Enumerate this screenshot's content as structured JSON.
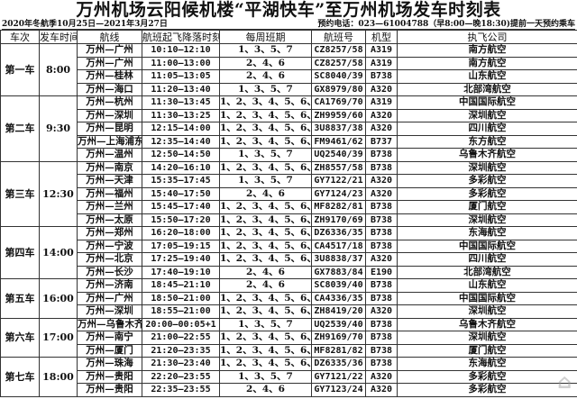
{
  "title": "万州机场云阳候机楼“平湖快车”至万州机场发车时刻表",
  "season": "2020年冬航季10月25日—2021年3月27日",
  "booking": "预约电话：023—61004788（早8:00—晚18:30)提前一天预约乘车",
  "headers": [
    "车次",
    "发车时间",
    "航线",
    "航班起飞降落时刻",
    "每周班期",
    "航班号",
    "机型",
    "执飞公司"
  ],
  "groups": [
    {
      "car": "第一车",
      "time": "8:00",
      "rows": [
        [
          "万州—广州",
          "10:10—12:10",
          "1、3、5、7",
          "CZ8257/58",
          "A319",
          "南方航空"
        ],
        [
          "万州—广州",
          "11:00—13:00",
          "2、4、6",
          "CZ8257/58",
          "A319",
          "南方航空"
        ],
        [
          "万州—桂林",
          "11:05—13:05",
          "2、4、6",
          "SC8040/39",
          "B738",
          "山东航空"
        ],
        [
          "万州—海口",
          "11:20—13:40",
          "1、3、5、7",
          "GX8979/80",
          "A320",
          "北部湾航空"
        ]
      ]
    },
    {
      "car": "第二车",
      "time": "9:30",
      "rows": [
        [
          "万州—杭州",
          "11:30—13:45",
          "1、2、3、4、5、6、7",
          "CA1769/70",
          "A319",
          "中国国际航空"
        ],
        [
          "万州—深圳",
          "11:30—13:25",
          "1、2、3、4、5、6、7",
          "ZH9959/60",
          "A320",
          "深圳航空"
        ],
        [
          "万州—昆明",
          "12:15—14:00",
          "1、2、3、4、5、6、7",
          "3U8837/38",
          "A320",
          "四川航空"
        ],
        [
          "万州—上海浦东",
          "12:35—14:40",
          "1、2、3、4、5、6、7",
          "FM9461/62",
          "B737",
          "东方航空"
        ],
        [
          "万州—温州",
          "12:50—14:50",
          "1、3、5、7",
          "UQ2540/39",
          "B738",
          "乌鲁木齐航空"
        ]
      ]
    },
    {
      "car": "第三车",
      "time": "12:30",
      "rows": [
        [
          "万州—南京",
          "14:20—16:10",
          "1、2、3、4、5、6、7",
          "ZH8557/58",
          "B738",
          "深圳航空"
        ],
        [
          "万州—天津",
          "15:35—17:45",
          "1、3、5、7",
          "GY7122/21",
          "A320",
          "多彩航空"
        ],
        [
          "万州—福州",
          "15:40—17:50",
          "2、4、6",
          "GY7124/23",
          "A320",
          "多彩航空"
        ],
        [
          "万州—兰州",
          "15:45—17:40",
          "1、2、3、4、5、6、7",
          "MF8282/81",
          "B738",
          "厦门航空"
        ],
        [
          "万州—太原",
          "15:50—17:20",
          "1、2、3、4、5、6、7",
          "ZH9170/69",
          "B738",
          "深圳航空"
        ]
      ]
    },
    {
      "car": "第四车",
      "time": "14:00",
      "rows": [
        [
          "万州—郑州",
          "16:20—18:00",
          "1、2、3、4、5、6、7",
          "DZ6336/35",
          "B738",
          "东海航空"
        ],
        [
          "万州—宁波",
          "17:05—19:15",
          "1、2、3、4、5、6、7",
          "CA4517/18",
          "B738",
          "中国国际航空"
        ],
        [
          "万州—北京",
          "17:25—19:40",
          "1、2、3、4、5、6、7",
          "3U8838/37",
          "A320",
          "四川航空"
        ],
        [
          "万州—长沙",
          "17:40—19:10",
          "2、4、6",
          "GX7883/84",
          "E190",
          "北部湾航空"
        ]
      ]
    },
    {
      "car": "第五车",
      "time": "16:00",
      "rows": [
        [
          "万州—济南",
          "18:45—21:10",
          "2、4、6",
          "SC8039/40",
          "B738",
          "山东航空"
        ],
        [
          "万州—广州",
          "18:50—21:00",
          "1、2、3、4、5、6、7",
          "CA4336/35",
          "B738",
          "中国国际航空"
        ],
        [
          "万州—深圳",
          "18:55—21:00",
          "1、2、3、4、5、6、7",
          "ZH8419/20",
          "A320",
          "深圳航空"
        ]
      ]
    },
    {
      "car": "第六车",
      "time": "17:00",
      "rows": [
        [
          "万州—乌鲁木齐",
          "20:00—00:05+1",
          "1、3、5、7",
          "UQ2539/40",
          "B738",
          "乌鲁木齐航空"
        ],
        [
          "万州—南宁",
          "21:00—22:55",
          "1、2、3、4、5、6、7",
          "ZH9169/70",
          "B738",
          "深圳航空"
        ],
        [
          "万州—厦门",
          "21:20—23:35",
          "1、2、3、4、5、6、7",
          "MF8281/82",
          "B738",
          "厦门航空"
        ]
      ]
    },
    {
      "car": "第七车",
      "time": "18:00",
      "rows": [
        [
          "万州—珠海",
          "21:30—23:40",
          "1、2、3、4、5、6、7",
          "DZ6335/36",
          "B738",
          "东海航空"
        ],
        [
          "万州—贵阳",
          "22:20—23:55",
          "1、3、5、7",
          "GY7121/22",
          "A320",
          "多彩航空"
        ],
        [
          "万州—贵阳",
          "22:35—23:55",
          "2、4、6",
          "GY7123/24",
          "A320",
          "多彩航空"
        ]
      ]
    }
  ],
  "watermark": "三峡网"
}
